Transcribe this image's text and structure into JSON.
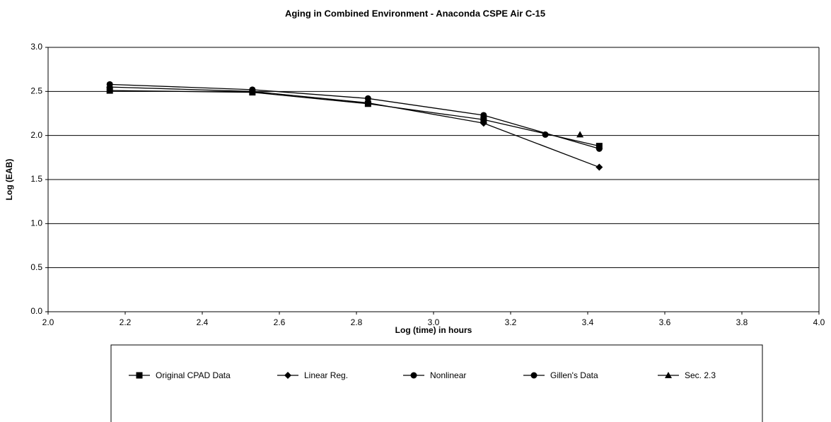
{
  "chart_data": {
    "type": "line",
    "title": "Aging in Combined Environment - Anaconda CSPE Air C-15",
    "x_label": "Log (time) in hours",
    "y_label": "Log (EAB)",
    "xlim": [
      2.0,
      4.0
    ],
    "xticks": [
      {
        "value": 2.0,
        "label": "2.0"
      },
      2.2,
      2.4,
      2.6,
      2.8,
      {
        "value": 3.0,
        "label": "3.0"
      },
      3.2,
      3.4,
      3.6,
      3.8,
      {
        "value": 4.0,
        "label": "4.0"
      }
    ],
    "ylim": [
      0.0,
      3.0
    ],
    "yticks": [
      {
        "value": 0.0,
        "label": "0.0"
      },
      0.5,
      {
        "value": 1.0,
        "label": "1.0"
      },
      1.5,
      {
        "value": 2.0,
        "label": "2.0"
      },
      2.5,
      {
        "value": 3.0,
        "label": "3.0"
      }
    ],
    "grid": true,
    "legend": "bottom",
    "series": [
      {
        "name": "Original CPAD Data",
        "color": "#000000",
        "marker": "square",
        "x": [
          2.16,
          2.53,
          2.83,
          3.13,
          3.43
        ],
        "values": [
          2.51,
          2.49,
          2.36,
          2.18,
          1.88
        ]
      },
      {
        "name": "Linear Reg.",
        "color": "#000000",
        "marker": "diamond",
        "x": [
          2.16,
          2.53,
          2.83,
          3.13,
          3.43
        ],
        "values": [
          2.55,
          2.5,
          2.37,
          2.14,
          1.64
        ]
      },
      {
        "name": "Nonlinear",
        "color": "#000000",
        "marker": "circle",
        "x": [
          2.16,
          2.53,
          2.83,
          3.13,
          3.43
        ],
        "values": [
          2.58,
          2.52,
          2.42,
          2.23,
          1.85
        ]
      },
      {
        "name": "Gillen's Data",
        "color": "#000000",
        "marker": "circle",
        "x": [
          3.29
        ],
        "values": [
          2.01
        ]
      },
      {
        "name": "Sec. 2.3",
        "color": "#000000",
        "marker": "triangle",
        "x": [
          3.38
        ],
        "values": [
          2.01
        ]
      }
    ]
  }
}
